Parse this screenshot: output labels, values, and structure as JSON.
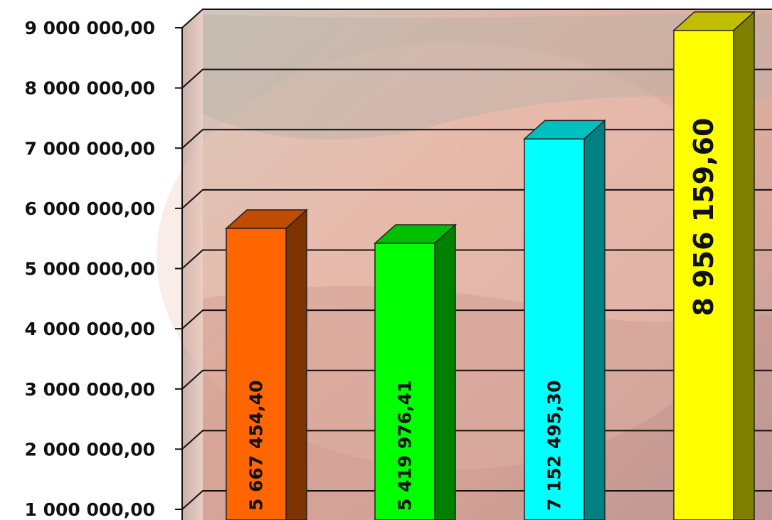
{
  "chart_data": {
    "type": "bar",
    "title": "",
    "xlabel": "",
    "ylabel": "",
    "style": "3d-column with photo background in plot area",
    "grid": true,
    "legend": "none",
    "ylim": [
      1000000,
      9000000
    ],
    "yticks": [
      {
        "value": 9000000,
        "label": "9 000 000,00"
      },
      {
        "value": 8000000,
        "label": "8 000 000,00"
      },
      {
        "value": 7000000,
        "label": "7 000 000,00"
      },
      {
        "value": 6000000,
        "label": "6 000 000,00"
      },
      {
        "value": 5000000,
        "label": "5 000 000,00"
      },
      {
        "value": 4000000,
        "label": "4 000 000,00"
      },
      {
        "value": 3000000,
        "label": "3 000 000,00"
      },
      {
        "value": 2000000,
        "label": "2 000 000,00"
      },
      {
        "value": 1000000,
        "label": "1 000 000,00"
      }
    ],
    "bars": [
      {
        "value": 5667454.4,
        "label": "5 667 454,40",
        "front": "#ff6600",
        "side": "#7f3300",
        "top": "#bf4c00"
      },
      {
        "value": 5419976.41,
        "label": "5 419 976,41",
        "front": "#00ff00",
        "side": "#008000",
        "top": "#00bf00"
      },
      {
        "value": 7152495.3,
        "label": "7 152 495,30",
        "front": "#00ffff",
        "side": "#008080",
        "top": "#00bfbf"
      },
      {
        "value": 8956159.6,
        "label": "8 956 159,60",
        "front": "#ffff00",
        "side": "#808000",
        "top": "#bfbf00"
      }
    ]
  }
}
